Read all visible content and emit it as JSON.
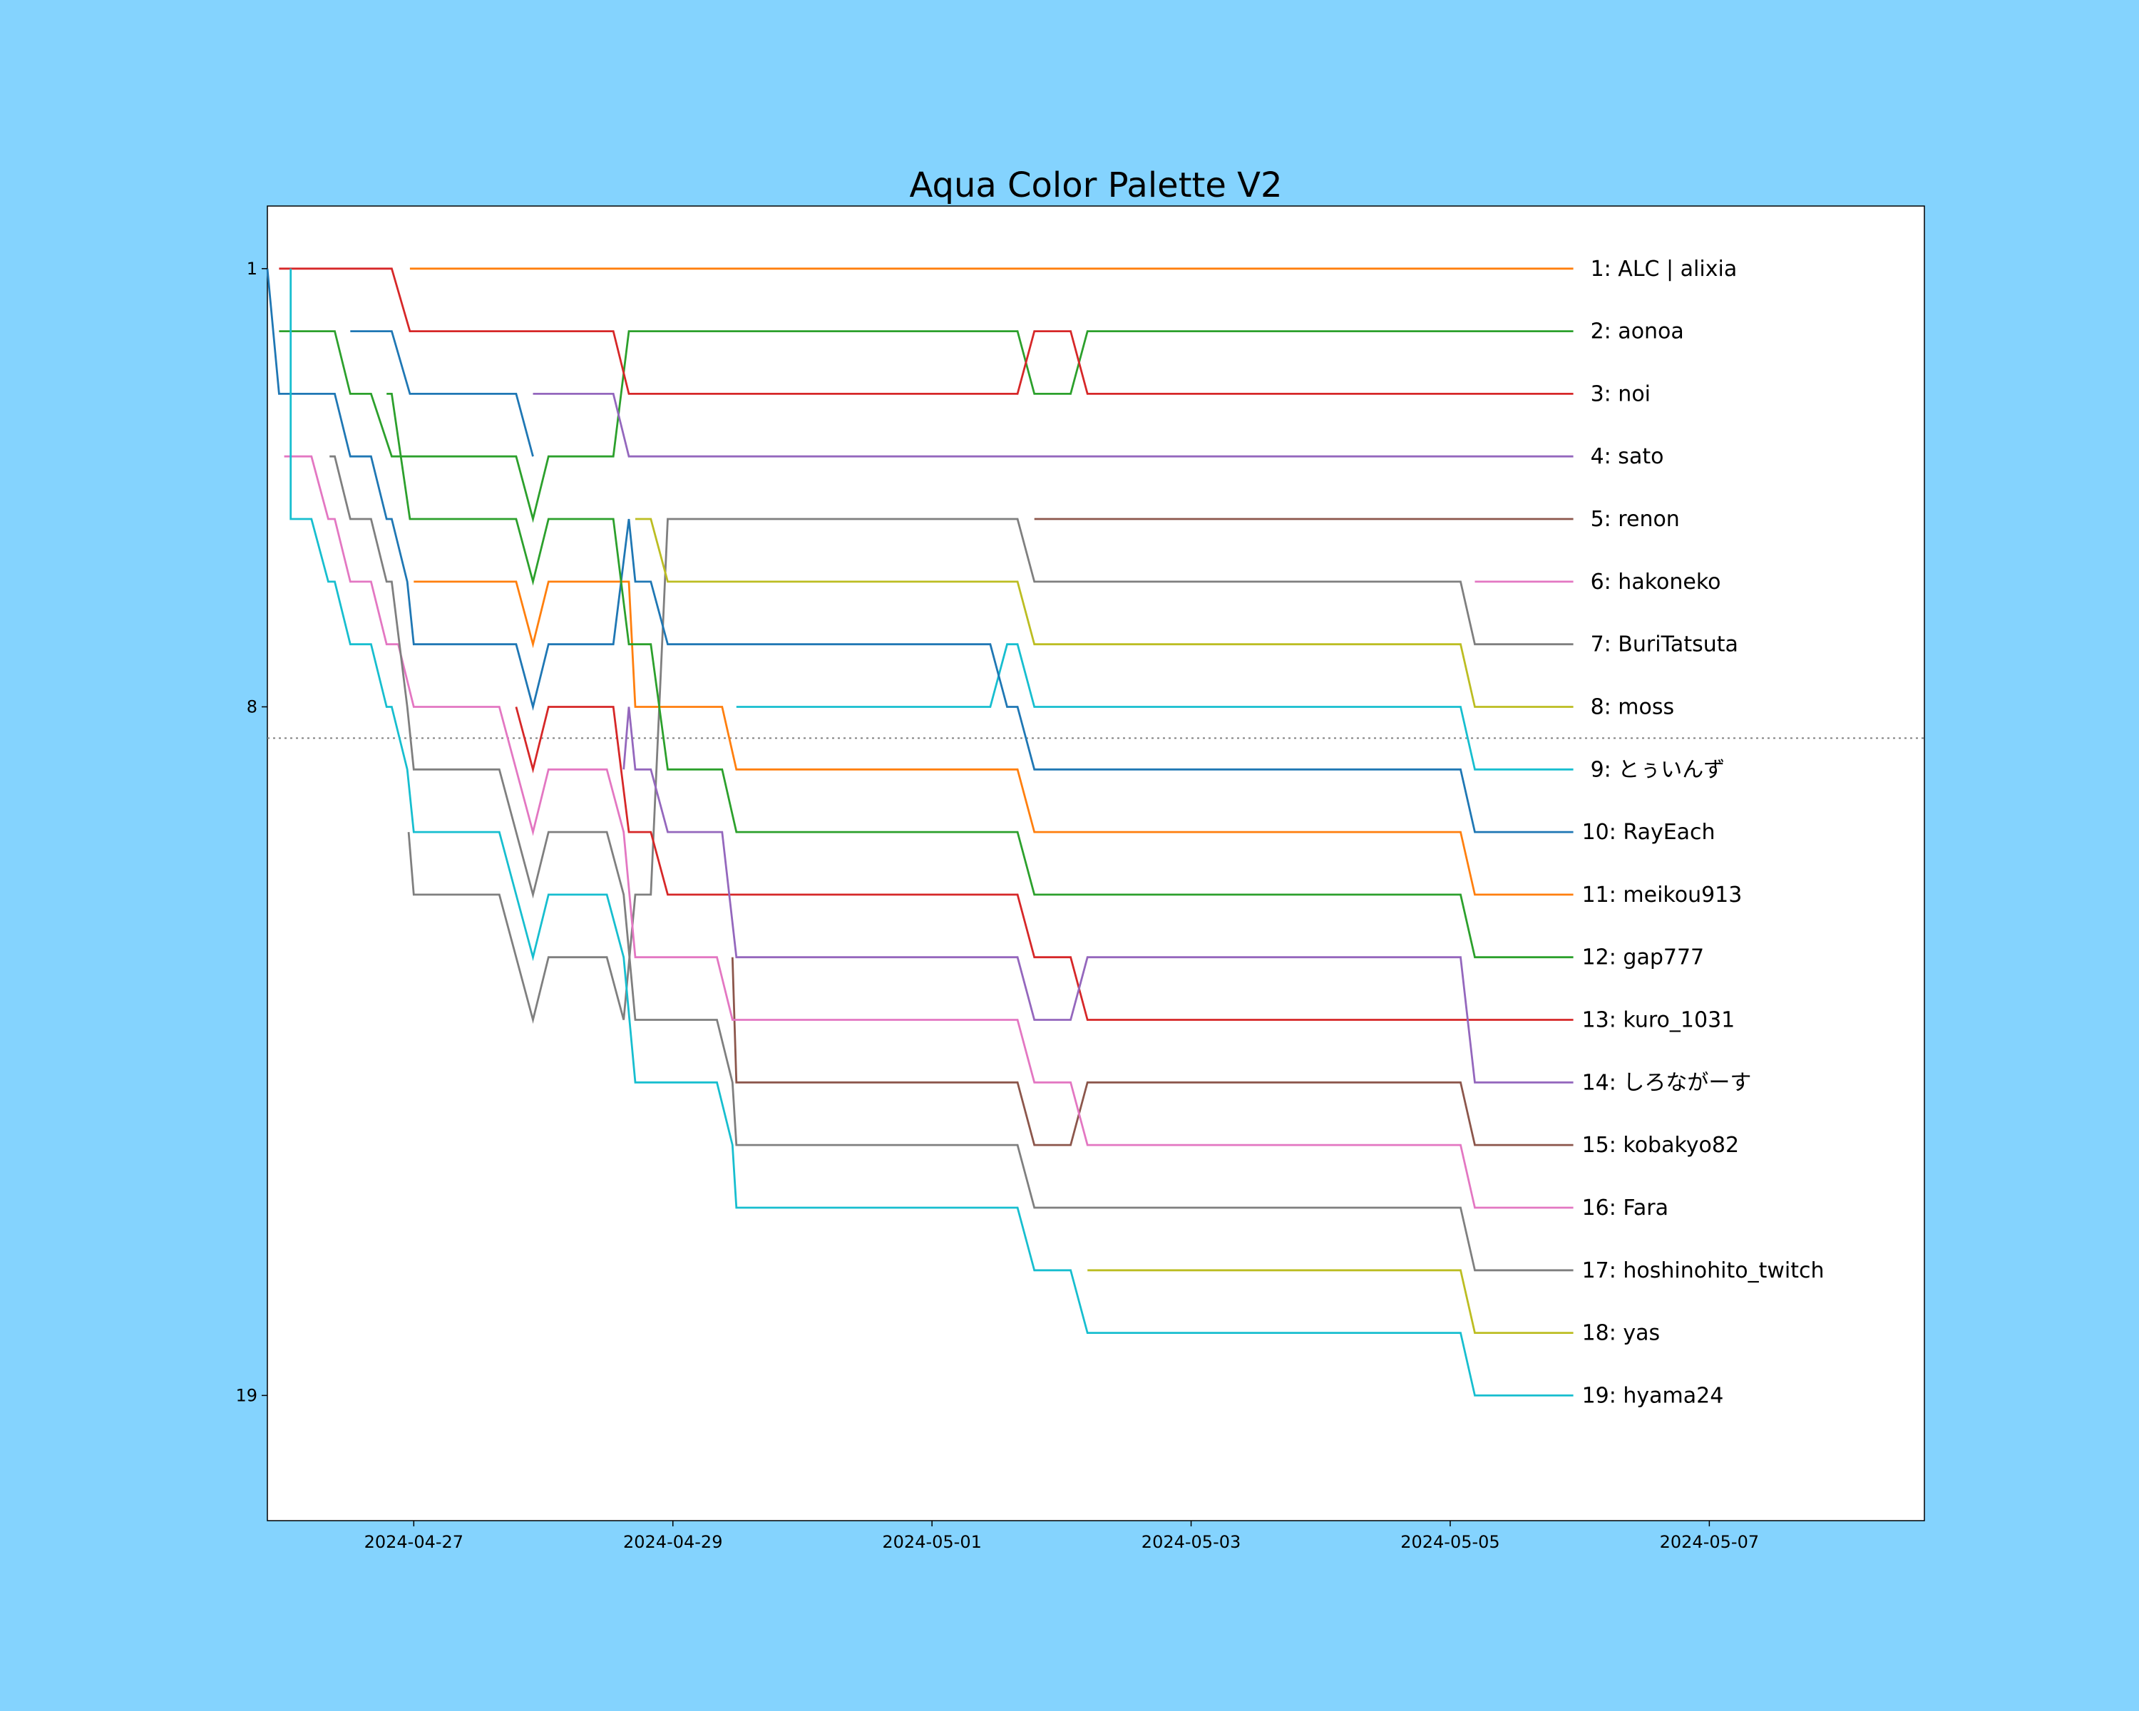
{
  "chart_data": {
    "type": "line",
    "title": "Aqua Color Palette V2",
    "xlabel": "",
    "ylabel": "",
    "x_unit": "days since 2024-04-27 00:00",
    "xlim": [
      -1.13,
      11.66
    ],
    "ylim": [
      21,
      0
    ],
    "y_inverted": true,
    "grid": false,
    "x_ticks": [
      {
        "value": 0,
        "label": "2024-04-27"
      },
      {
        "value": 2,
        "label": "2024-04-29"
      },
      {
        "value": 4,
        "label": "2024-05-01"
      },
      {
        "value": 6,
        "label": "2024-05-03"
      },
      {
        "value": 8,
        "label": "2024-05-05"
      },
      {
        "value": 10,
        "label": "2024-05-07"
      }
    ],
    "y_ticks": [
      {
        "value": 1,
        "label": "1"
      },
      {
        "value": 8,
        "label": "8"
      },
      {
        "value": 19,
        "label": "19"
      }
    ],
    "reference_line": {
      "y": 8.5,
      "style": "dotted",
      "color": "#808080"
    },
    "series": [
      {
        "name": "1: ALC | alixia",
        "color": "#ff7f0e",
        "points": [
          [
            -0.03,
            1
          ],
          [
            8.95,
            1
          ]
        ]
      },
      {
        "name": "2: aonoa",
        "color": "#2ca02c",
        "points": [
          [
            -1.04,
            2
          ],
          [
            -0.61,
            2
          ],
          [
            -0.49,
            3
          ],
          [
            -0.33,
            3
          ],
          [
            -0.17,
            4
          ],
          [
            0.79,
            4
          ],
          [
            0.92,
            5
          ],
          [
            1.04,
            4
          ],
          [
            1.54,
            4
          ],
          [
            1.66,
            2
          ],
          [
            4.66,
            2
          ],
          [
            4.79,
            3
          ],
          [
            5.07,
            3
          ],
          [
            5.2,
            2
          ],
          [
            8.95,
            2
          ]
        ]
      },
      {
        "name": "3: noi",
        "color": "#d62728",
        "points": [
          [
            -1.04,
            1
          ],
          [
            -0.17,
            1
          ],
          [
            -0.03,
            2
          ],
          [
            1.54,
            2
          ],
          [
            1.66,
            3
          ],
          [
            4.66,
            3
          ],
          [
            4.79,
            2
          ],
          [
            5.07,
            2
          ],
          [
            5.2,
            3
          ],
          [
            8.95,
            3
          ]
        ]
      },
      {
        "name": "4: sato",
        "color": "#9467bd",
        "points": [
          [
            0.92,
            3
          ],
          [
            1.54,
            3
          ],
          [
            1.66,
            4
          ],
          [
            8.95,
            4
          ]
        ]
      },
      {
        "name": "5: renon",
        "color": "#8c564b",
        "points": [
          [
            4.79,
            5
          ],
          [
            8.95,
            5
          ]
        ]
      },
      {
        "name": "6: hakoneko",
        "color": "#e377c2",
        "points": [
          [
            8.19,
            6
          ],
          [
            8.95,
            6
          ]
        ]
      },
      {
        "name": "7: BuriTatsuta",
        "color": "#7f7f7f",
        "points": [
          [
            -0.04,
            10
          ],
          [
            0,
            11
          ],
          [
            0.66,
            11
          ],
          [
            0.92,
            13
          ],
          [
            1.04,
            12
          ],
          [
            1.49,
            12
          ],
          [
            1.62,
            13
          ],
          [
            1.71,
            11
          ],
          [
            1.83,
            11
          ],
          [
            1.96,
            5
          ],
          [
            4.66,
            5
          ],
          [
            4.79,
            6
          ],
          [
            8.08,
            6
          ],
          [
            8.19,
            7
          ],
          [
            8.95,
            7
          ]
        ]
      },
      {
        "name": "8: moss",
        "color": "#bcbd22",
        "points": [
          [
            1.71,
            5
          ],
          [
            1.83,
            5
          ],
          [
            1.96,
            6
          ],
          [
            4.66,
            6
          ],
          [
            4.79,
            7
          ],
          [
            8.08,
            7
          ],
          [
            8.19,
            8
          ],
          [
            8.95,
            8
          ]
        ]
      },
      {
        "name": "9: とぅいんず",
        "color": "#17becf",
        "points": [
          [
            2.49,
            8
          ],
          [
            4.45,
            8
          ],
          [
            4.58,
            7
          ],
          [
            4.66,
            7
          ],
          [
            4.79,
            8
          ],
          [
            8.08,
            8
          ],
          [
            8.19,
            9
          ],
          [
            8.95,
            9
          ]
        ]
      },
      {
        "name": "10: RayEach",
        "color": "#1f77b4",
        "points": [
          [
            -1.13,
            1
          ],
          [
            -1.04,
            3
          ],
          [
            -0.61,
            3
          ],
          [
            -0.49,
            4
          ],
          [
            -0.33,
            4
          ],
          [
            -0.21,
            5
          ],
          [
            -0.17,
            5
          ],
          [
            -0.05,
            6
          ],
          [
            0,
            7
          ],
          [
            0.79,
            7
          ],
          [
            0.92,
            8
          ],
          [
            1.04,
            7
          ],
          [
            1.54,
            7
          ],
          [
            1.66,
            5
          ],
          [
            1.71,
            6
          ],
          [
            1.83,
            6
          ],
          [
            1.96,
            7
          ],
          [
            4.45,
            7
          ],
          [
            4.58,
            8
          ],
          [
            4.66,
            8
          ],
          [
            4.79,
            9
          ],
          [
            8.08,
            9
          ],
          [
            8.19,
            10
          ],
          [
            8.95,
            10
          ]
        ]
      },
      {
        "name": "11: meikou913",
        "color": "#ff7f0e",
        "points": [
          [
            0,
            6
          ],
          [
            0.79,
            6
          ],
          [
            0.92,
            7
          ],
          [
            1.04,
            6
          ],
          [
            1.66,
            6
          ],
          [
            1.71,
            8
          ],
          [
            2.38,
            8
          ],
          [
            2.49,
            9
          ],
          [
            4.66,
            9
          ],
          [
            4.79,
            10
          ],
          [
            8.08,
            10
          ],
          [
            8.19,
            11
          ],
          [
            8.95,
            11
          ]
        ]
      },
      {
        "name": "12: gap777",
        "color": "#2ca02c",
        "points": [
          [
            -0.21,
            3
          ],
          [
            -0.17,
            3
          ],
          [
            -0.03,
            5
          ],
          [
            0.79,
            5
          ],
          [
            0.92,
            6
          ],
          [
            1.04,
            5
          ],
          [
            1.54,
            5
          ],
          [
            1.66,
            7
          ],
          [
            1.83,
            7
          ],
          [
            1.96,
            9
          ],
          [
            2.38,
            9
          ],
          [
            2.49,
            10
          ],
          [
            4.66,
            10
          ],
          [
            4.79,
            11
          ],
          [
            8.08,
            11
          ],
          [
            8.19,
            12
          ],
          [
            8.95,
            12
          ]
        ]
      },
      {
        "name": "13: kuro_1031",
        "color": "#d62728",
        "points": [
          [
            0.79,
            8
          ],
          [
            0.92,
            9
          ],
          [
            1.04,
            8
          ],
          [
            1.54,
            8
          ],
          [
            1.66,
            10
          ],
          [
            1.83,
            10
          ],
          [
            1.96,
            11
          ],
          [
            4.66,
            11
          ],
          [
            4.79,
            12
          ],
          [
            5.07,
            12
          ],
          [
            5.2,
            13
          ],
          [
            8.95,
            13
          ]
        ]
      },
      {
        "name": "14: しろながーす",
        "color": "#9467bd",
        "points": [
          [
            1.62,
            9
          ],
          [
            1.66,
            8
          ],
          [
            1.71,
            9
          ],
          [
            1.83,
            9
          ],
          [
            1.96,
            10
          ],
          [
            2.38,
            10
          ],
          [
            2.49,
            12
          ],
          [
            4.66,
            12
          ],
          [
            4.79,
            13
          ],
          [
            5.07,
            13
          ],
          [
            5.2,
            12
          ],
          [
            8.08,
            12
          ],
          [
            8.19,
            14
          ],
          [
            8.95,
            14
          ]
        ]
      },
      {
        "name": "15: kobakyo82",
        "color": "#8c564b",
        "points": [
          [
            2.46,
            12
          ],
          [
            2.49,
            14
          ],
          [
            4.66,
            14
          ],
          [
            4.79,
            15
          ],
          [
            5.07,
            15
          ],
          [
            5.2,
            14
          ],
          [
            8.08,
            14
          ],
          [
            8.19,
            15
          ],
          [
            8.95,
            15
          ]
        ]
      },
      {
        "name": "16: Fara",
        "color": "#e377c2",
        "points": [
          [
            -1.0,
            4
          ],
          [
            -0.79,
            4
          ],
          [
            -0.66,
            5
          ],
          [
            -0.61,
            5
          ],
          [
            -0.49,
            6
          ],
          [
            -0.33,
            6
          ],
          [
            -0.21,
            7
          ],
          [
            -0.12,
            7
          ],
          [
            0,
            8
          ],
          [
            0.66,
            8
          ],
          [
            0.92,
            10
          ],
          [
            1.04,
            9
          ],
          [
            1.49,
            9
          ],
          [
            1.62,
            10
          ],
          [
            1.71,
            12
          ],
          [
            2.34,
            12
          ],
          [
            2.46,
            13
          ],
          [
            4.66,
            13
          ],
          [
            4.79,
            14
          ],
          [
            5.07,
            14
          ],
          [
            5.2,
            15
          ],
          [
            8.08,
            15
          ],
          [
            8.19,
            16
          ],
          [
            8.95,
            16
          ]
        ]
      },
      {
        "name": "17: hoshinohito_twitch",
        "color": "#7f7f7f",
        "points": [
          [
            -0.65,
            4
          ],
          [
            -0.61,
            4
          ],
          [
            -0.49,
            5
          ],
          [
            -0.33,
            5
          ],
          [
            -0.21,
            6
          ],
          [
            -0.17,
            6
          ],
          [
            -0.05,
            8
          ],
          [
            0,
            9
          ],
          [
            0.66,
            9
          ],
          [
            0.92,
            11
          ],
          [
            1.04,
            10
          ],
          [
            1.49,
            10
          ],
          [
            1.62,
            11
          ],
          [
            1.71,
            13
          ],
          [
            2.34,
            13
          ],
          [
            2.46,
            14
          ],
          [
            2.49,
            15
          ],
          [
            4.66,
            15
          ],
          [
            4.79,
            16
          ],
          [
            8.08,
            16
          ],
          [
            8.19,
            17
          ],
          [
            8.95,
            17
          ]
        ]
      },
      {
        "name": "18: yas",
        "color": "#bcbd22",
        "points": [
          [
            5.2,
            17
          ],
          [
            8.08,
            17
          ],
          [
            8.19,
            18
          ],
          [
            8.95,
            18
          ]
        ]
      },
      {
        "name": "19: hyama24",
        "color": "#17becf",
        "points": [
          [
            -0.95,
            1
          ],
          [
            -0.95,
            5
          ],
          [
            -0.79,
            5
          ],
          [
            -0.66,
            6
          ],
          [
            -0.61,
            6
          ],
          [
            -0.49,
            7
          ],
          [
            -0.33,
            7
          ],
          [
            -0.21,
            8
          ],
          [
            -0.17,
            8
          ],
          [
            -0.05,
            9
          ],
          [
            0,
            10
          ],
          [
            0.66,
            10
          ],
          [
            0.92,
            12
          ],
          [
            1.04,
            11
          ],
          [
            1.49,
            11
          ],
          [
            1.62,
            12
          ],
          [
            1.71,
            14
          ],
          [
            2.34,
            14
          ],
          [
            2.46,
            15
          ],
          [
            2.49,
            16
          ],
          [
            4.66,
            16
          ],
          [
            4.79,
            17
          ],
          [
            5.07,
            17
          ],
          [
            5.2,
            18
          ],
          [
            8.08,
            18
          ],
          [
            8.19,
            19
          ],
          [
            8.95,
            19
          ]
        ]
      },
      {
        "name": "",
        "color": "#1f77b4",
        "points": [
          [
            -0.49,
            2
          ],
          [
            -0.17,
            2
          ],
          [
            -0.03,
            3
          ],
          [
            0.79,
            3
          ],
          [
            0.92,
            4
          ]
        ]
      }
    ]
  }
}
